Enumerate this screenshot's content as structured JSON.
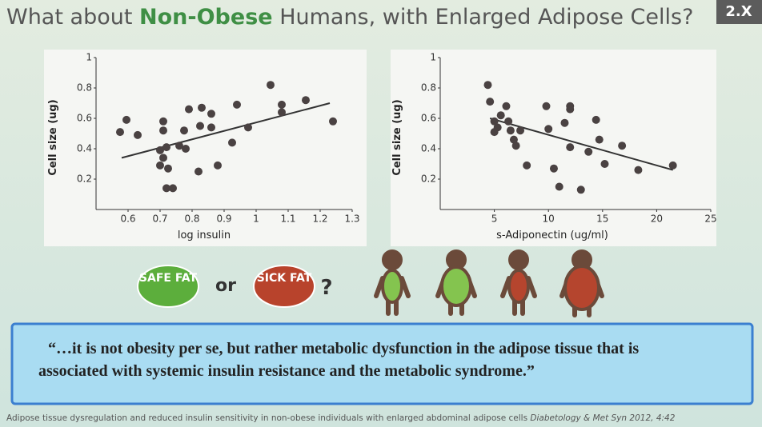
{
  "slide": {
    "title_parts": [
      "What about",
      "Non-Obese",
      "Humans, with Enlarged Adipose Cells?"
    ],
    "badge": "2.X",
    "safe": "SAFE FAT",
    "or": "or",
    "sick": "SICK FAT",
    "question": "?",
    "quote": [
      "“…it is not obesity per se, but rather metabolic dysfunction in the adipose tissue that is",
      "associated with systemic insulin resistance and the metabolic syndrome.”"
    ],
    "citation": "Adipose tissue dysregulation and reduced insulin sensitivity in non-obese individuals with enlarged abdominal adipose cells",
    "journal": "Diabetology & Met Syn 2012, 4:42"
  },
  "chart_data": [
    {
      "type": "scatter",
      "x_label": "log insulin",
      "y_label": "Cell size (ug)",
      "color": "#4a4242",
      "xlim": [
        0.5,
        1.3
      ],
      "ylim": [
        0,
        1
      ],
      "xticks": [
        0.6,
        0.7,
        0.8,
        0.9,
        1,
        1.1,
        1.2,
        1.3
      ],
      "yticks": [
        0.2,
        0.4,
        0.6,
        0.8,
        1
      ],
      "x": [
        0.575,
        0.595,
        0.63,
        0.71,
        0.71,
        0.7,
        0.72,
        0.71,
        0.7,
        0.725,
        0.72,
        0.74,
        0.76,
        0.78,
        0.775,
        0.79,
        0.825,
        0.83,
        0.86,
        0.86,
        0.82,
        0.88,
        0.925,
        0.94,
        0.975,
        1.045,
        1.08,
        1.08,
        1.155,
        1.24
      ],
      "values": [
        0.51,
        0.59,
        0.49,
        0.58,
        0.52,
        0.39,
        0.41,
        0.34,
        0.29,
        0.27,
        0.14,
        0.14,
        0.42,
        0.4,
        0.52,
        0.66,
        0.55,
        0.67,
        0.54,
        0.63,
        0.25,
        0.29,
        0.44,
        0.69,
        0.54,
        0.82,
        0.69,
        0.64,
        0.72,
        0.58
      ],
      "trend": {
        "x": [
          0.58,
          1.23
        ],
        "y": [
          0.34,
          0.7
        ]
      }
    },
    {
      "type": "scatter",
      "x_label": "s-Adiponectin (ug/ml)",
      "y_label": "Cell size (ug)",
      "color": "#4a4242",
      "xlim": [
        0,
        25
      ],
      "ylim": [
        0,
        1
      ],
      "xticks": [
        5,
        10,
        15,
        20,
        25
      ],
      "yticks": [
        0.2,
        0.4,
        0.6,
        0.8,
        1
      ],
      "x": [
        4.4,
        4.6,
        5.0,
        5.0,
        5.3,
        6.1,
        5.6,
        6.3,
        6.5,
        6.8,
        7.0,
        7.4,
        8.0,
        9.8,
        10,
        10.5,
        11,
        11.5,
        12,
        12,
        12,
        13,
        13.7,
        14.4,
        14.7,
        15.2,
        16.8,
        18.3,
        21.5
      ],
      "values": [
        0.82,
        0.71,
        0.58,
        0.51,
        0.54,
        0.68,
        0.62,
        0.58,
        0.52,
        0.46,
        0.42,
        0.52,
        0.29,
        0.68,
        0.53,
        0.27,
        0.15,
        0.57,
        0.66,
        0.68,
        0.41,
        0.13,
        0.38,
        0.59,
        0.46,
        0.3,
        0.42,
        0.26,
        0.29
      ],
      "trend": {
        "x": [
          4.6,
          21.5
        ],
        "y": [
          0.6,
          0.26
        ]
      }
    }
  ]
}
